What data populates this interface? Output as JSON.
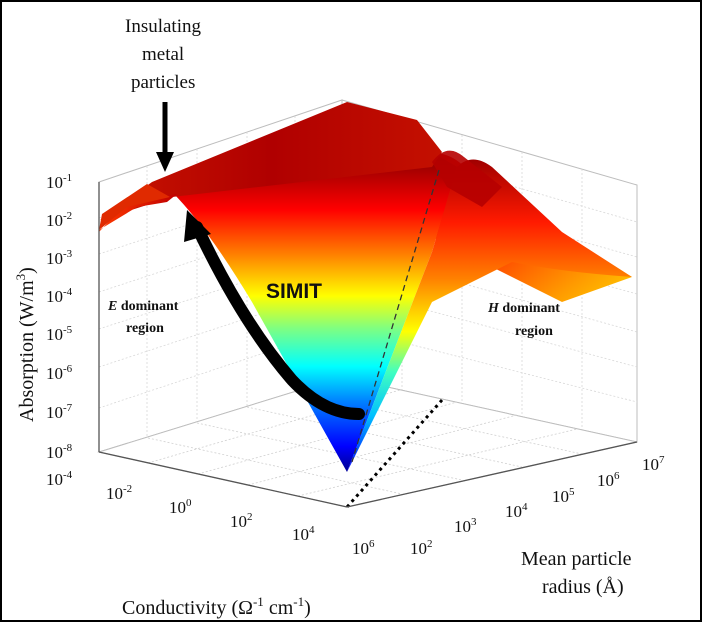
{
  "chart_data": {
    "type": "surface-3d",
    "title": "",
    "zlabel": "Absorption (W/m3)",
    "xlabel": "Conductivity (Ω-1 cm-1)",
    "ylabel_lines": [
      "Mean particle",
      "radius (Å)"
    ],
    "z_scale": "log",
    "x_scale": "log",
    "y_scale": "log",
    "z_ticks": [
      {
        "base": "10",
        "exp": "-1"
      },
      {
        "base": "10",
        "exp": "-2"
      },
      {
        "base": "10",
        "exp": "-3"
      },
      {
        "base": "10",
        "exp": "-4"
      },
      {
        "base": "10",
        "exp": "-5"
      },
      {
        "base": "10",
        "exp": "-6"
      },
      {
        "base": "10",
        "exp": "-7"
      },
      {
        "base": "10",
        "exp": "-8"
      }
    ],
    "x_ticks": [
      {
        "base": "10",
        "exp": "-4"
      },
      {
        "base": "10",
        "exp": "-2"
      },
      {
        "base": "10",
        "exp": "0"
      },
      {
        "base": "10",
        "exp": "2"
      },
      {
        "base": "10",
        "exp": "4"
      },
      {
        "base": "10",
        "exp": "6"
      }
    ],
    "y_ticks": [
      {
        "base": "10",
        "exp": "2"
      },
      {
        "base": "10",
        "exp": "3"
      },
      {
        "base": "10",
        "exp": "4"
      },
      {
        "base": "10",
        "exp": "5"
      },
      {
        "base": "10",
        "exp": "6"
      },
      {
        "base": "10",
        "exp": "7"
      }
    ],
    "xlim": [
      0.0001,
      1000000.0
    ],
    "ylim": [
      100.0,
      10000000.0
    ],
    "zlim": [
      1e-08,
      0.1
    ],
    "grid": true,
    "colormap": "jet",
    "annotations": {
      "insulating_lines": [
        "Insulating",
        "metal",
        "particles"
      ],
      "simit": "SIMIT",
      "e_region_lines": [
        "E dominant",
        "region"
      ],
      "h_region_lines": [
        "H dominant",
        "region"
      ]
    },
    "ridge_points": [
      {
        "sigma": 0.0001,
        "absorption": 0.01
      },
      {
        "sigma": 0.001,
        "absorption": 0.05
      },
      {
        "sigma": 0.01,
        "absorption": 0.1
      },
      {
        "sigma": 1.0,
        "absorption": 0.0001
      },
      {
        "sigma": 1000.0,
        "absorption": 1e-08
      }
    ]
  }
}
